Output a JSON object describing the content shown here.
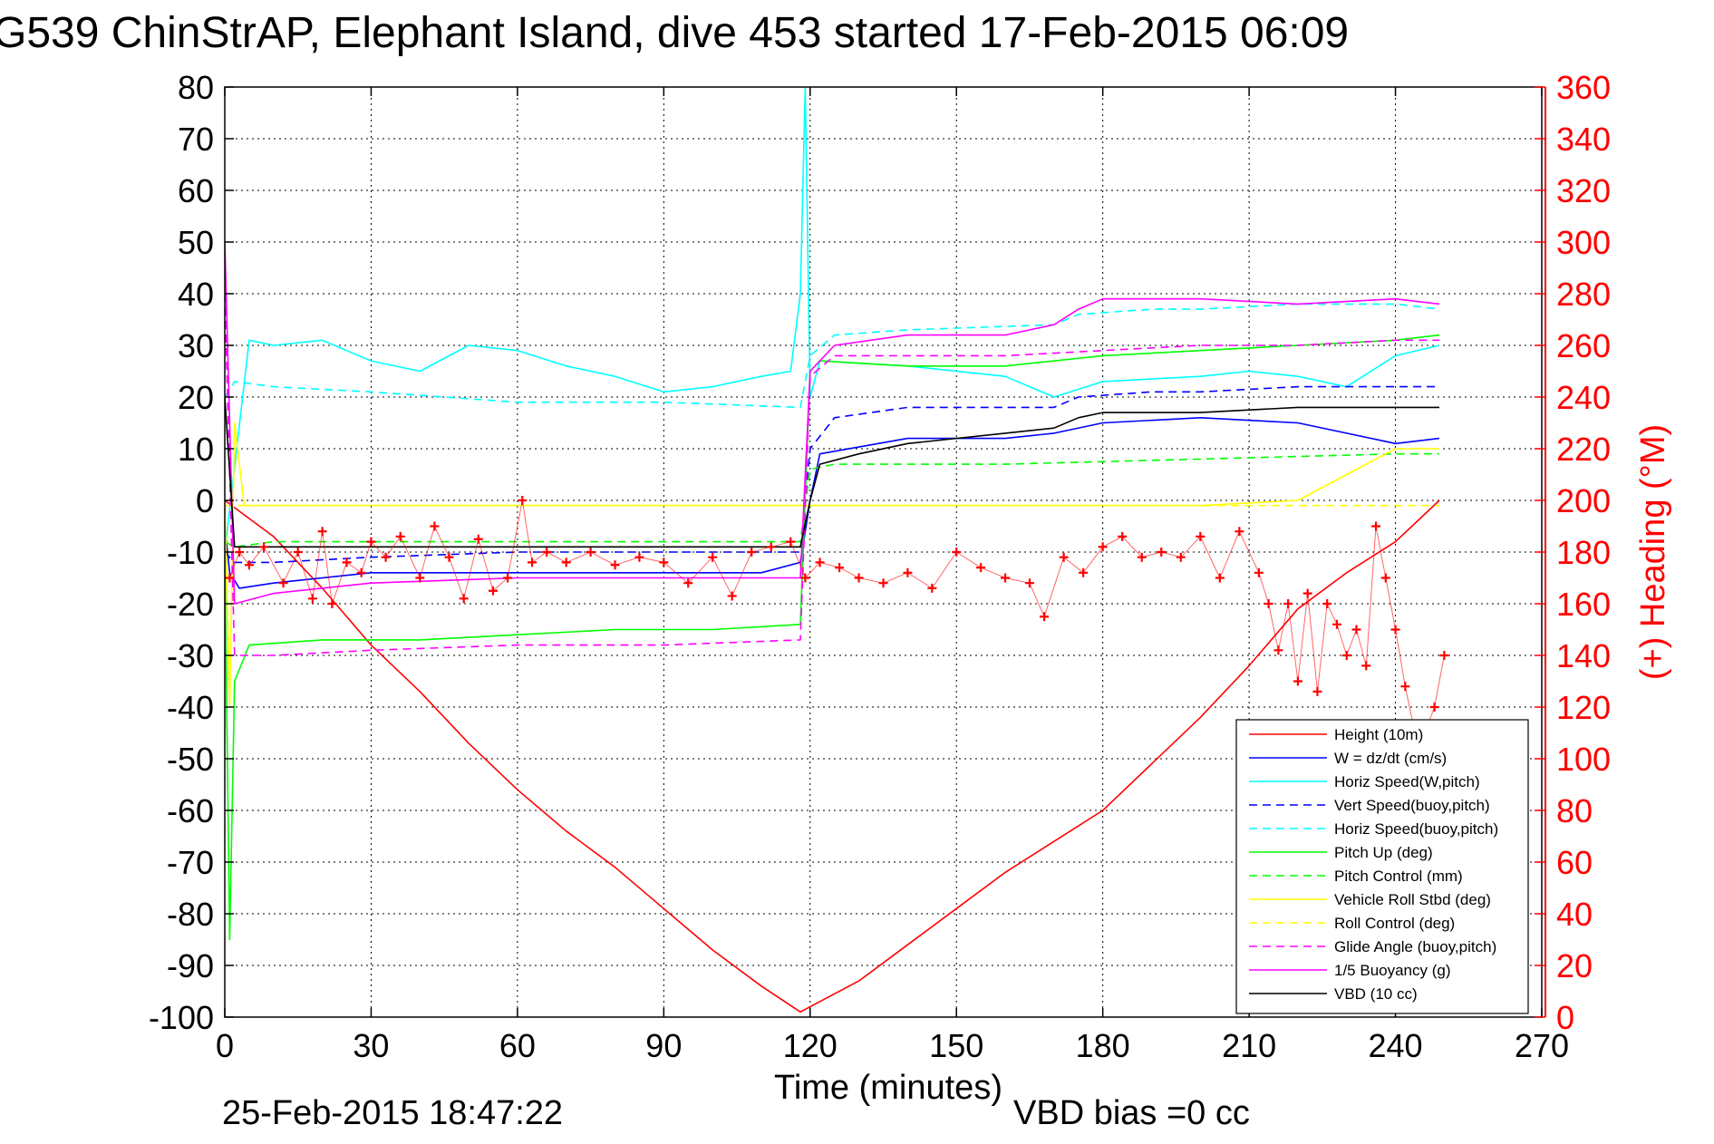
{
  "chart_data": {
    "type": "line",
    "title": "G539 ChinStrAP, Elephant Island, dive 453 started 17-Feb-2015 06:09",
    "xlabel": "Time (minutes)",
    "ylabel_right": "(+) Heading (°M)",
    "xlim": [
      0,
      270
    ],
    "ylim": [
      -100,
      80
    ],
    "ylim_right": [
      0,
      360
    ],
    "xticks": [
      "0",
      "30",
      "60",
      "90",
      "120",
      "150",
      "180",
      "210",
      "240",
      "270"
    ],
    "yticks": [
      "80",
      "70",
      "60",
      "50",
      "40",
      "30",
      "20",
      "10",
      "0",
      "-10",
      "-20",
      "-30",
      "-40",
      "-50",
      "-60",
      "-70",
      "-80",
      "-90",
      "-100"
    ],
    "yticks_right": [
      "360",
      "340",
      "320",
      "300",
      "280",
      "260",
      "240",
      "220",
      "200",
      "180",
      "160",
      "140",
      "120",
      "100",
      "80",
      "60",
      "40",
      "20",
      "0"
    ],
    "grid": true,
    "legend_position": "bottom-right",
    "axis_color_right": "#ff0000",
    "footer_left": "25-Feb-2015 18:47:22",
    "footer_right": "VBD bias =0 cc",
    "series": [
      {
        "name": "Height (10m)",
        "color": "#ff0000",
        "style": "solid",
        "x": [
          0,
          10,
          20,
          30,
          40,
          50,
          60,
          70,
          80,
          90,
          100,
          110,
          118,
          120,
          130,
          140,
          150,
          160,
          170,
          180,
          190,
          200,
          210,
          220,
          230,
          240,
          249
        ],
        "y": [
          0,
          -7,
          -17,
          -28,
          -37,
          -47,
          -56,
          -64,
          -71,
          -79,
          -87,
          -94,
          -99,
          -98,
          -93,
          -86,
          -79,
          -72,
          -66,
          -60,
          -51,
          -42,
          -32,
          -21,
          -14,
          -8,
          0
        ]
      },
      {
        "name": "W = dz/dt (cm/s)",
        "color": "#0000ff",
        "style": "solid",
        "x": [
          0,
          1,
          3,
          10,
          30,
          50,
          70,
          90,
          110,
          118,
          120,
          122,
          140,
          160,
          170,
          180,
          200,
          220,
          240,
          249
        ],
        "y": [
          -5,
          -14,
          -17,
          -16,
          -14,
          -14,
          -14,
          -14,
          -14,
          -12,
          0,
          9,
          12,
          12,
          13,
          15,
          16,
          15,
          11,
          12
        ]
      },
      {
        "name": "Horiz Speed(W,pitch)",
        "color": "#00ffff",
        "style": "solid",
        "x": [
          0,
          5,
          10,
          20,
          30,
          40,
          50,
          60,
          70,
          80,
          90,
          100,
          110,
          116,
          118,
          119,
          120,
          122,
          140,
          160,
          170,
          180,
          200,
          210,
          220,
          230,
          240,
          249
        ],
        "y": [
          -10,
          31,
          30,
          31,
          27,
          25,
          30,
          29,
          26,
          24,
          21,
          22,
          24,
          25,
          40,
          80,
          20,
          27,
          26,
          24,
          20,
          23,
          24,
          25,
          24,
          22,
          28,
          30
        ]
      },
      {
        "name": "Vert Speed(buoy,pitch)",
        "color": "#0000ff",
        "style": "dashed",
        "x": [
          0,
          2,
          10,
          30,
          60,
          90,
          118,
          120,
          125,
          140,
          170,
          175,
          190,
          200,
          220,
          240,
          249
        ],
        "y": [
          -10,
          -12,
          -12,
          -11,
          -10,
          -10,
          -10,
          10,
          16,
          18,
          18,
          20,
          21,
          21,
          22,
          22,
          22
        ]
      },
      {
        "name": "Horiz Speed(buoy,pitch)",
        "color": "#00ffff",
        "style": "dashed",
        "x": [
          0,
          2,
          10,
          30,
          60,
          90,
          118,
          120,
          125,
          140,
          170,
          175,
          190,
          200,
          220,
          240,
          249
        ],
        "y": [
          20,
          23,
          22,
          21,
          19,
          19,
          18,
          28,
          32,
          33,
          34,
          36,
          37,
          37,
          38,
          38,
          37
        ]
      },
      {
        "name": "Pitch Up (deg)",
        "color": "#00ff00",
        "style": "solid",
        "x": [
          0,
          1,
          2,
          5,
          20,
          40,
          60,
          80,
          100,
          118,
          120,
          122,
          140,
          160,
          180,
          200,
          220,
          240,
          249
        ],
        "y": [
          -10,
          -85,
          -35,
          -28,
          -27,
          -27,
          -26,
          -25,
          -25,
          -24,
          25,
          27,
          26,
          26,
          28,
          29,
          30,
          31,
          32
        ]
      },
      {
        "name": "Pitch Control (mm)",
        "color": "#00ff00",
        "style": "dashed",
        "x": [
          0,
          2,
          10,
          40,
          80,
          118,
          120,
          125,
          160,
          200,
          240,
          249
        ],
        "y": [
          -8,
          -9,
          -8,
          -8,
          -8,
          -8,
          6,
          7,
          7,
          8,
          9,
          9
        ]
      },
      {
        "name": "Vehicle Roll Stbd (deg)",
        "color": "#ffff00",
        "style": "solid",
        "x": [
          0,
          1,
          2,
          4,
          10,
          30,
          50,
          70,
          90,
          110,
          118,
          120,
          140,
          160,
          180,
          200,
          220,
          240,
          249
        ],
        "y": [
          0,
          -40,
          15,
          -1,
          -1,
          -1,
          -1,
          -1,
          -1,
          -1,
          -1,
          -1,
          -1,
          -1,
          -1,
          -1,
          0,
          10,
          10
        ]
      },
      {
        "name": "Roll Control (deg)",
        "color": "#ffff00",
        "style": "dashed",
        "x": [
          0,
          2,
          10,
          40,
          80,
          118,
          120,
          160,
          200,
          240,
          249
        ],
        "y": [
          -1,
          -1,
          -1,
          -1,
          -1,
          -1,
          -1,
          -1,
          -1,
          -1,
          -1
        ]
      },
      {
        "name": "Glide Angle (buoy,pitch)",
        "color": "#ff00ff",
        "style": "dashed",
        "x": [
          0,
          2,
          10,
          30,
          60,
          90,
          118,
          120,
          125,
          140,
          160,
          180,
          200,
          220,
          240,
          249
        ],
        "y": [
          40,
          -30,
          -30,
          -29,
          -28,
          -28,
          -27,
          24,
          28,
          28,
          28,
          29,
          30,
          30,
          31,
          31
        ]
      },
      {
        "name": "1/5 Buoyancy (g)",
        "color": "#ff00ff",
        "style": "solid",
        "x": [
          0,
          2,
          10,
          30,
          60,
          90,
          118,
          119,
          120,
          125,
          140,
          160,
          170,
          175,
          180,
          200,
          220,
          240,
          249
        ],
        "y": [
          50,
          -20,
          -18,
          -16,
          -15,
          -15,
          -15,
          5,
          25,
          30,
          32,
          32,
          34,
          37,
          39,
          39,
          38,
          39,
          38
        ]
      },
      {
        "name": "VBD (10 cc)",
        "color": "#000000",
        "style": "solid",
        "x": [
          0,
          2,
          10,
          30,
          60,
          90,
          118,
          120,
          122,
          130,
          140,
          160,
          170,
          175,
          180,
          200,
          220,
          240,
          249
        ],
        "y": [
          20,
          -9,
          -9,
          -9,
          -9,
          -9,
          -9,
          0,
          7,
          9,
          11,
          13,
          14,
          16,
          17,
          17,
          18,
          18,
          18
        ]
      }
    ],
    "heading_series": {
      "name": "Heading",
      "color": "#ff0000",
      "marker": "+",
      "axis": "right",
      "x": [
        1,
        3,
        5,
        8,
        12,
        15,
        18,
        20,
        22,
        25,
        28,
        30,
        33,
        36,
        40,
        43,
        46,
        49,
        52,
        55,
        58,
        61,
        63,
        66,
        70,
        75,
        80,
        85,
        90,
        95,
        100,
        104,
        108,
        112,
        116,
        119,
        122,
        126,
        130,
        135,
        140,
        145,
        150,
        155,
        160,
        165,
        168,
        172,
        176,
        180,
        184,
        188,
        192,
        196,
        200,
        204,
        208,
        212,
        214,
        216,
        218,
        220,
        222,
        224,
        226,
        228,
        230,
        232,
        234,
        236,
        238,
        240,
        242,
        244,
        246,
        248,
        250
      ],
      "y": [
        170,
        180,
        175,
        182,
        168,
        180,
        162,
        188,
        160,
        176,
        172,
        184,
        178,
        186,
        170,
        190,
        178,
        162,
        185,
        165,
        170,
        200,
        176,
        180,
        176,
        180,
        175,
        178,
        176,
        168,
        178,
        163,
        180,
        182,
        184,
        170,
        176,
        174,
        170,
        168,
        172,
        166,
        180,
        174,
        170,
        168,
        155,
        178,
        172,
        182,
        186,
        178,
        180,
        178,
        186,
        170,
        188,
        172,
        160,
        142,
        160,
        130,
        164,
        126,
        160,
        152,
        140,
        150,
        136,
        190,
        170,
        150,
        128,
        110,
        110,
        120,
        140
      ]
    }
  }
}
